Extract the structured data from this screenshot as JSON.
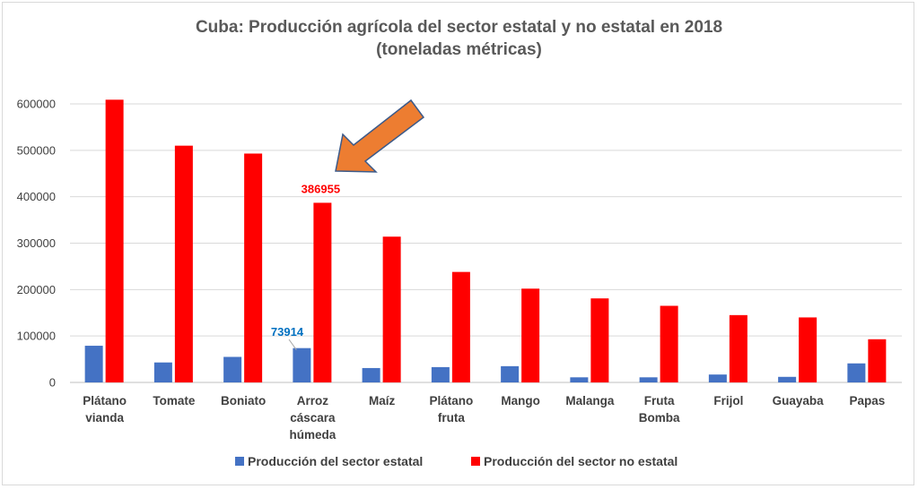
{
  "chart_data": {
    "type": "bar",
    "title": "Cuba: Producción agrícola del sector estatal y no estatal en 2018",
    "subtitle": "(toneladas métricas)",
    "categories": [
      [
        "Plátano",
        "vianda"
      ],
      [
        "Tomate"
      ],
      [
        "Boniato"
      ],
      [
        "Arroz",
        "cáscara",
        "húmeda"
      ],
      [
        "Maíz"
      ],
      [
        "Plátano",
        "fruta"
      ],
      [
        "Mango"
      ],
      [
        "Malanga"
      ],
      [
        "Fruta",
        "Bomba"
      ],
      [
        "Frijol"
      ],
      [
        "Guayaba"
      ],
      [
        "Papas"
      ]
    ],
    "series": [
      {
        "name": "Producción del sector estatal",
        "color": "#4472c4",
        "values": [
          79000,
          43000,
          55000,
          73914,
          31000,
          33000,
          35000,
          11000,
          11000,
          17000,
          12000,
          41000
        ]
      },
      {
        "name": "Producción del sector no estatal",
        "color": "#ff0000",
        "values": [
          609000,
          510000,
          493000,
          386955,
          314000,
          238000,
          202000,
          181000,
          165000,
          145000,
          140000,
          93000
        ]
      }
    ],
    "data_labels": [
      {
        "series": 0,
        "category": 3,
        "text": "73914",
        "color": "#0070c0"
      },
      {
        "series": 1,
        "category": 3,
        "text": "386955",
        "color": "#ff0000"
      }
    ],
    "yticks": [
      "0",
      "100000",
      "200000",
      "300000",
      "400000",
      "500000",
      "600000"
    ],
    "ylim": [
      0,
      600000
    ],
    "grid": true,
    "legend_position": "bottom",
    "annotation_arrow_color": "#ed7d31"
  }
}
